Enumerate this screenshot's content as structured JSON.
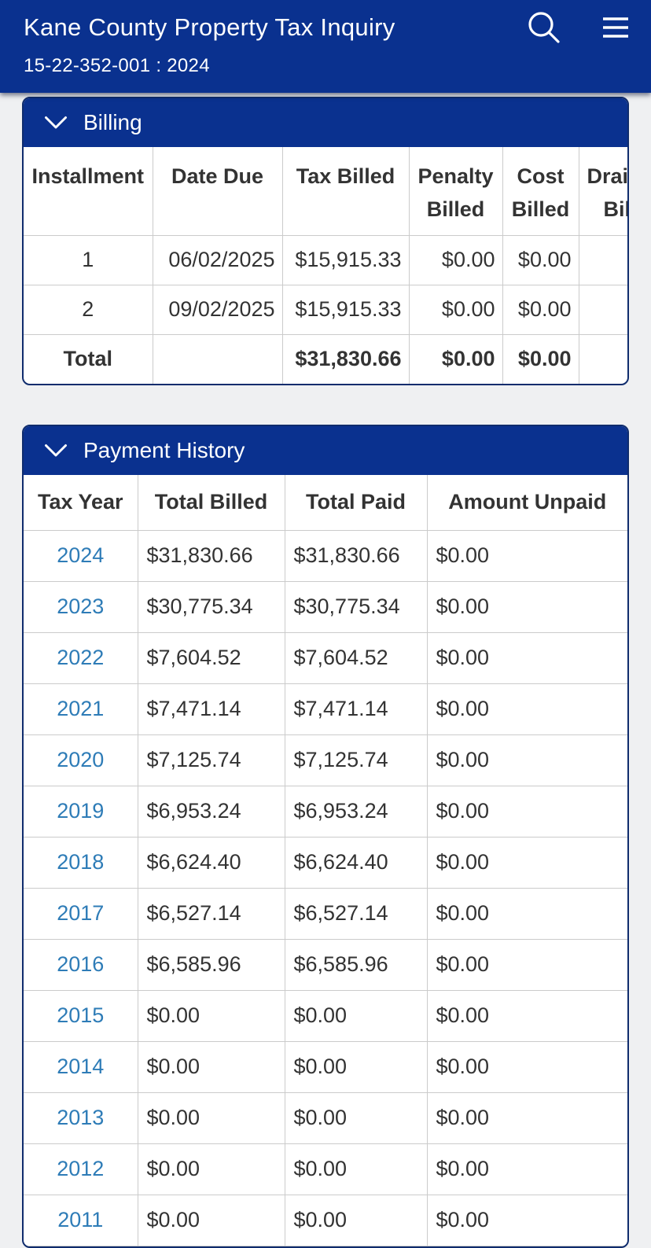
{
  "app": {
    "title": "Kane County Property Tax Inquiry",
    "subtitle": "15-22-352-001 : 2024",
    "icons": [
      "search-icon",
      "hamburger-menu-icon",
      "chevron-down-icon"
    ]
  },
  "colors": {
    "header_blue": "#0a318f",
    "card_border_navy": "#0f2c6d",
    "page_background": "#eff0f2",
    "table_border": "#cbcbcb",
    "text": "#333333",
    "link_blue": "#2e7cb7",
    "white": "#ffffff"
  },
  "billing": {
    "title": "Billing",
    "columns": [
      "Installment",
      "Date Due",
      "Tax Billed",
      "Penalty Billed",
      "Cost Billed",
      "Drainage Billed"
    ],
    "rows": [
      {
        "installment": "1",
        "date_due": "06/02/2025",
        "tax_billed": "$15,915.33",
        "penalty_billed": "$0.00",
        "cost_billed": "$0.00",
        "drainage_billed": ""
      },
      {
        "installment": "2",
        "date_due": "09/02/2025",
        "tax_billed": "$15,915.33",
        "penalty_billed": "$0.00",
        "cost_billed": "$0.00",
        "drainage_billed": ""
      }
    ],
    "total": {
      "label": "Total",
      "date_due": "",
      "tax_billed": "$31,830.66",
      "penalty_billed": "$0.00",
      "cost_billed": "$0.00",
      "drainage_billed": ""
    }
  },
  "payment_history": {
    "title": "Payment History",
    "columns": [
      "Tax Year",
      "Total Billed",
      "Total Paid",
      "Amount Unpaid"
    ],
    "rows": [
      {
        "year": "2024",
        "total_billed": "$31,830.66",
        "total_paid": "$31,830.66",
        "amount_unpaid": "$0.00"
      },
      {
        "year": "2023",
        "total_billed": "$30,775.34",
        "total_paid": "$30,775.34",
        "amount_unpaid": "$0.00"
      },
      {
        "year": "2022",
        "total_billed": "$7,604.52",
        "total_paid": "$7,604.52",
        "amount_unpaid": "$0.00"
      },
      {
        "year": "2021",
        "total_billed": "$7,471.14",
        "total_paid": "$7,471.14",
        "amount_unpaid": "$0.00"
      },
      {
        "year": "2020",
        "total_billed": "$7,125.74",
        "total_paid": "$7,125.74",
        "amount_unpaid": "$0.00"
      },
      {
        "year": "2019",
        "total_billed": "$6,953.24",
        "total_paid": "$6,953.24",
        "amount_unpaid": "$0.00"
      },
      {
        "year": "2018",
        "total_billed": "$6,624.40",
        "total_paid": "$6,624.40",
        "amount_unpaid": "$0.00"
      },
      {
        "year": "2017",
        "total_billed": "$6,527.14",
        "total_paid": "$6,527.14",
        "amount_unpaid": "$0.00"
      },
      {
        "year": "2016",
        "total_billed": "$6,585.96",
        "total_paid": "$6,585.96",
        "amount_unpaid": "$0.00"
      },
      {
        "year": "2015",
        "total_billed": "$0.00",
        "total_paid": "$0.00",
        "amount_unpaid": "$0.00"
      },
      {
        "year": "2014",
        "total_billed": "$0.00",
        "total_paid": "$0.00",
        "amount_unpaid": "$0.00"
      },
      {
        "year": "2013",
        "total_billed": "$0.00",
        "total_paid": "$0.00",
        "amount_unpaid": "$0.00"
      },
      {
        "year": "2012",
        "total_billed": "$0.00",
        "total_paid": "$0.00",
        "amount_unpaid": "$0.00"
      },
      {
        "year": "2011",
        "total_billed": "$0.00",
        "total_paid": "$0.00",
        "amount_unpaid": "$0.00"
      }
    ]
  }
}
